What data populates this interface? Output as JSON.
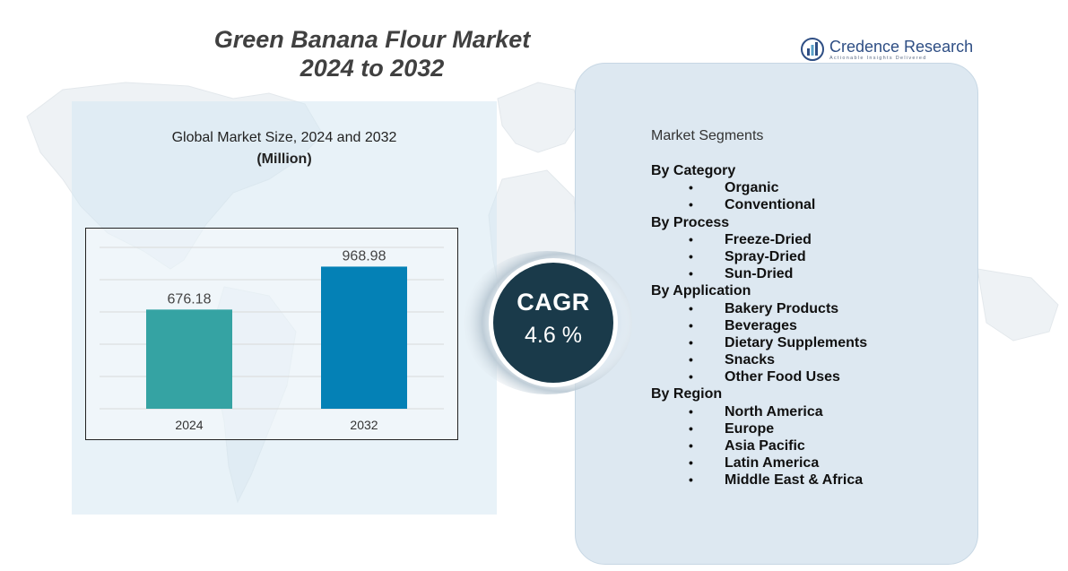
{
  "title": {
    "line1": "Green Banana Flour Market",
    "line2": "2024 to 2032"
  },
  "brand": {
    "name": "Credence Research",
    "tagline": "Actionable Insights Delivered",
    "icon": "bar-chart-logo-icon"
  },
  "chart_heading": {
    "line1": "Global Market Size,  2024 and 2032",
    "unit": "(Million)"
  },
  "chart_data": {
    "type": "bar",
    "title": "Global Market Size,  2024 and 2032",
    "ylabel": "(Million)",
    "categories": [
      "2024",
      "2032"
    ],
    "values": [
      676.18,
      968.98
    ],
    "value_labels": [
      "676.18",
      "968.98"
    ],
    "colors": [
      "#35a3a3",
      "#0481b6"
    ],
    "ylim": [
      0,
      1100
    ],
    "grid": true
  },
  "cagr": {
    "label": "CAGR",
    "value": "4.6 %"
  },
  "segments": {
    "title": "Market Segments",
    "groups": [
      {
        "label": "By Category",
        "items": [
          "Organic",
          "Conventional"
        ]
      },
      {
        "label": "By Process",
        "items": [
          "Freeze-Dried",
          "Spray-Dried",
          "Sun-Dried"
        ]
      },
      {
        "label": "By Application",
        "items": [
          "Bakery Products",
          "Beverages",
          "Dietary Supplements",
          "Snacks",
          "Other Food Uses"
        ]
      },
      {
        "label": "By Region",
        "items": [
          "North America",
          "Europe",
          "Asia Pacific",
          "Latin America",
          "Middle East & Africa"
        ]
      }
    ]
  },
  "colors": {
    "title": "#404040",
    "cagr_circle": "#1a3a4a",
    "panel": "#dde8f1"
  }
}
